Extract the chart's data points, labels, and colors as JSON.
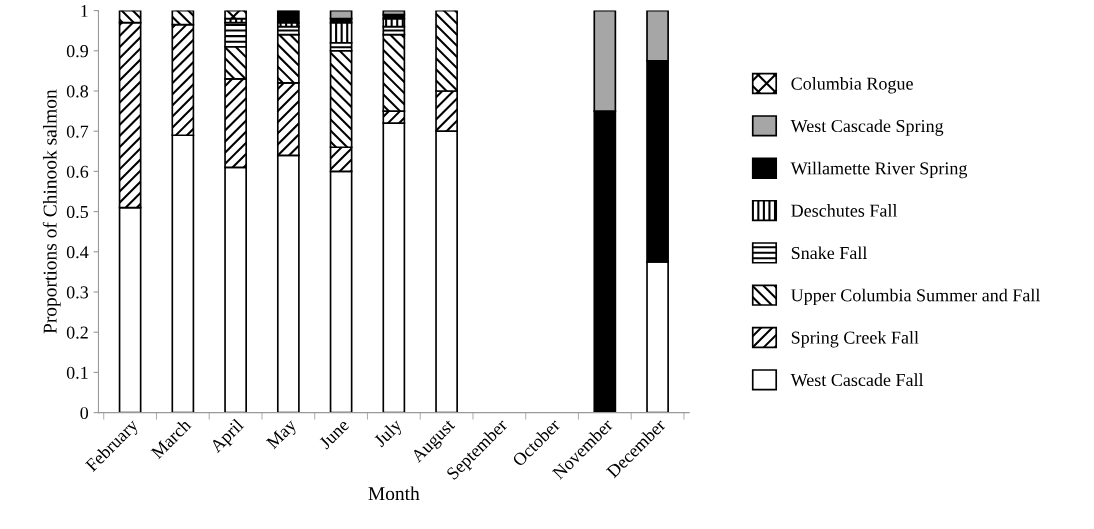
{
  "chart_data": {
    "type": "bar",
    "stacked": true,
    "xlabel": "Month",
    "ylabel": "Proportions of Chinook salmon",
    "categories": [
      "February",
      "March",
      "April",
      "May",
      "June",
      "July",
      "August",
      "September",
      "October",
      "November",
      "December"
    ],
    "ylim": [
      0,
      1
    ],
    "yticks": [
      0,
      0.1,
      0.2,
      0.3,
      0.4,
      0.5,
      0.6,
      0.7,
      0.8,
      0.9,
      1
    ],
    "grid": false,
    "legend": "right",
    "series": [
      {
        "name": "West Cascade Fall",
        "color": "#ffffff",
        "values": [
          0.51,
          0.69,
          0.61,
          0.64,
          0.6,
          0.72,
          0.7,
          null,
          null,
          0,
          0.375
        ]
      },
      {
        "name": "Spring Creek Fall",
        "color": "#000000",
        "values": [
          0.46,
          0.275,
          0.22,
          0.18,
          0.06,
          0.03,
          0.1,
          null,
          null,
          0,
          0
        ]
      },
      {
        "name": "Upper Columbia Summer and Fall",
        "color": "#000000",
        "values": [
          0.03,
          0.035,
          0.08,
          0.12,
          0.24,
          0.19,
          0.2,
          null,
          null,
          0,
          0
        ]
      },
      {
        "name": "Snake Fall",
        "color": "#000000",
        "values": [
          0,
          0,
          0.06,
          0.02,
          0.02,
          0.02,
          0,
          null,
          null,
          0,
          0
        ]
      },
      {
        "name": "Deschutes Fall",
        "color": "#000000",
        "values": [
          0,
          0,
          0.01,
          0.01,
          0.05,
          0.02,
          0,
          null,
          null,
          0,
          0
        ]
      },
      {
        "name": "Willamette River Spring",
        "color": "#000000",
        "values": [
          0,
          0,
          0,
          0.03,
          0.01,
          0.01,
          0,
          null,
          null,
          0.75,
          0.5
        ]
      },
      {
        "name": "West Cascade Spring",
        "color": "#a6a6a6",
        "values": [
          0,
          0,
          0,
          0,
          0.02,
          0.01,
          0,
          null,
          null,
          0.25,
          0.125
        ]
      },
      {
        "name": "Columbia Rogue",
        "color": "#000000",
        "values": [
          0,
          0,
          0.02,
          0,
          0,
          0,
          0,
          null,
          null,
          0,
          0
        ]
      }
    ]
  }
}
